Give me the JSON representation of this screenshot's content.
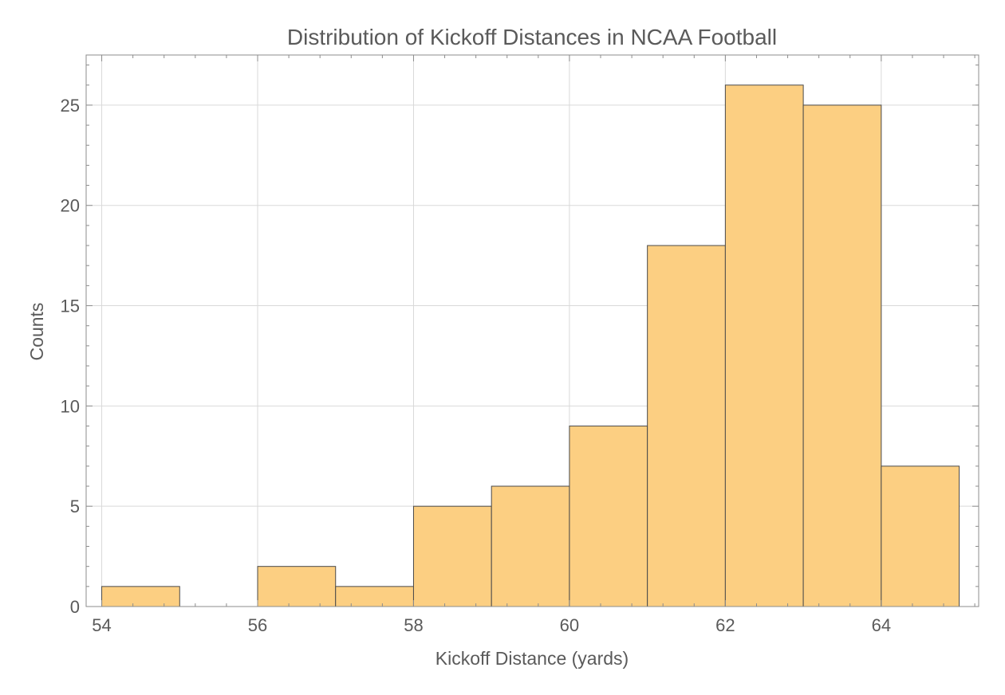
{
  "chart_data": {
    "type": "bar",
    "title": "Distribution of Kickoff Distances in NCAA Football",
    "xlabel": "Kickoff Distance (yards)",
    "ylabel": "Counts",
    "bins": [
      {
        "start": 54,
        "end": 55,
        "count": 1
      },
      {
        "start": 55,
        "end": 56,
        "count": 0
      },
      {
        "start": 56,
        "end": 57,
        "count": 2
      },
      {
        "start": 57,
        "end": 58,
        "count": 1
      },
      {
        "start": 58,
        "end": 59,
        "count": 5
      },
      {
        "start": 59,
        "end": 60,
        "count": 6
      },
      {
        "start": 60,
        "end": 61,
        "count": 9
      },
      {
        "start": 61,
        "end": 62,
        "count": 18
      },
      {
        "start": 62,
        "end": 63,
        "count": 26
      },
      {
        "start": 63,
        "end": 64,
        "count": 25
      },
      {
        "start": 64,
        "end": 65,
        "count": 7
      }
    ],
    "xlim": [
      53.8,
      65.25
    ],
    "ylim": [
      0,
      27.5
    ],
    "xticks": [
      54,
      56,
      58,
      60,
      62,
      64
    ],
    "yticks": [
      0,
      5,
      10,
      15,
      20,
      25
    ],
    "grid": true,
    "colors": {
      "bar_fill": "#FCCF82",
      "bar_edge": "#4a4a4a",
      "grid": "#d9d9d9",
      "frame": "#8c8c8c",
      "text": "#5a5a5a"
    }
  }
}
